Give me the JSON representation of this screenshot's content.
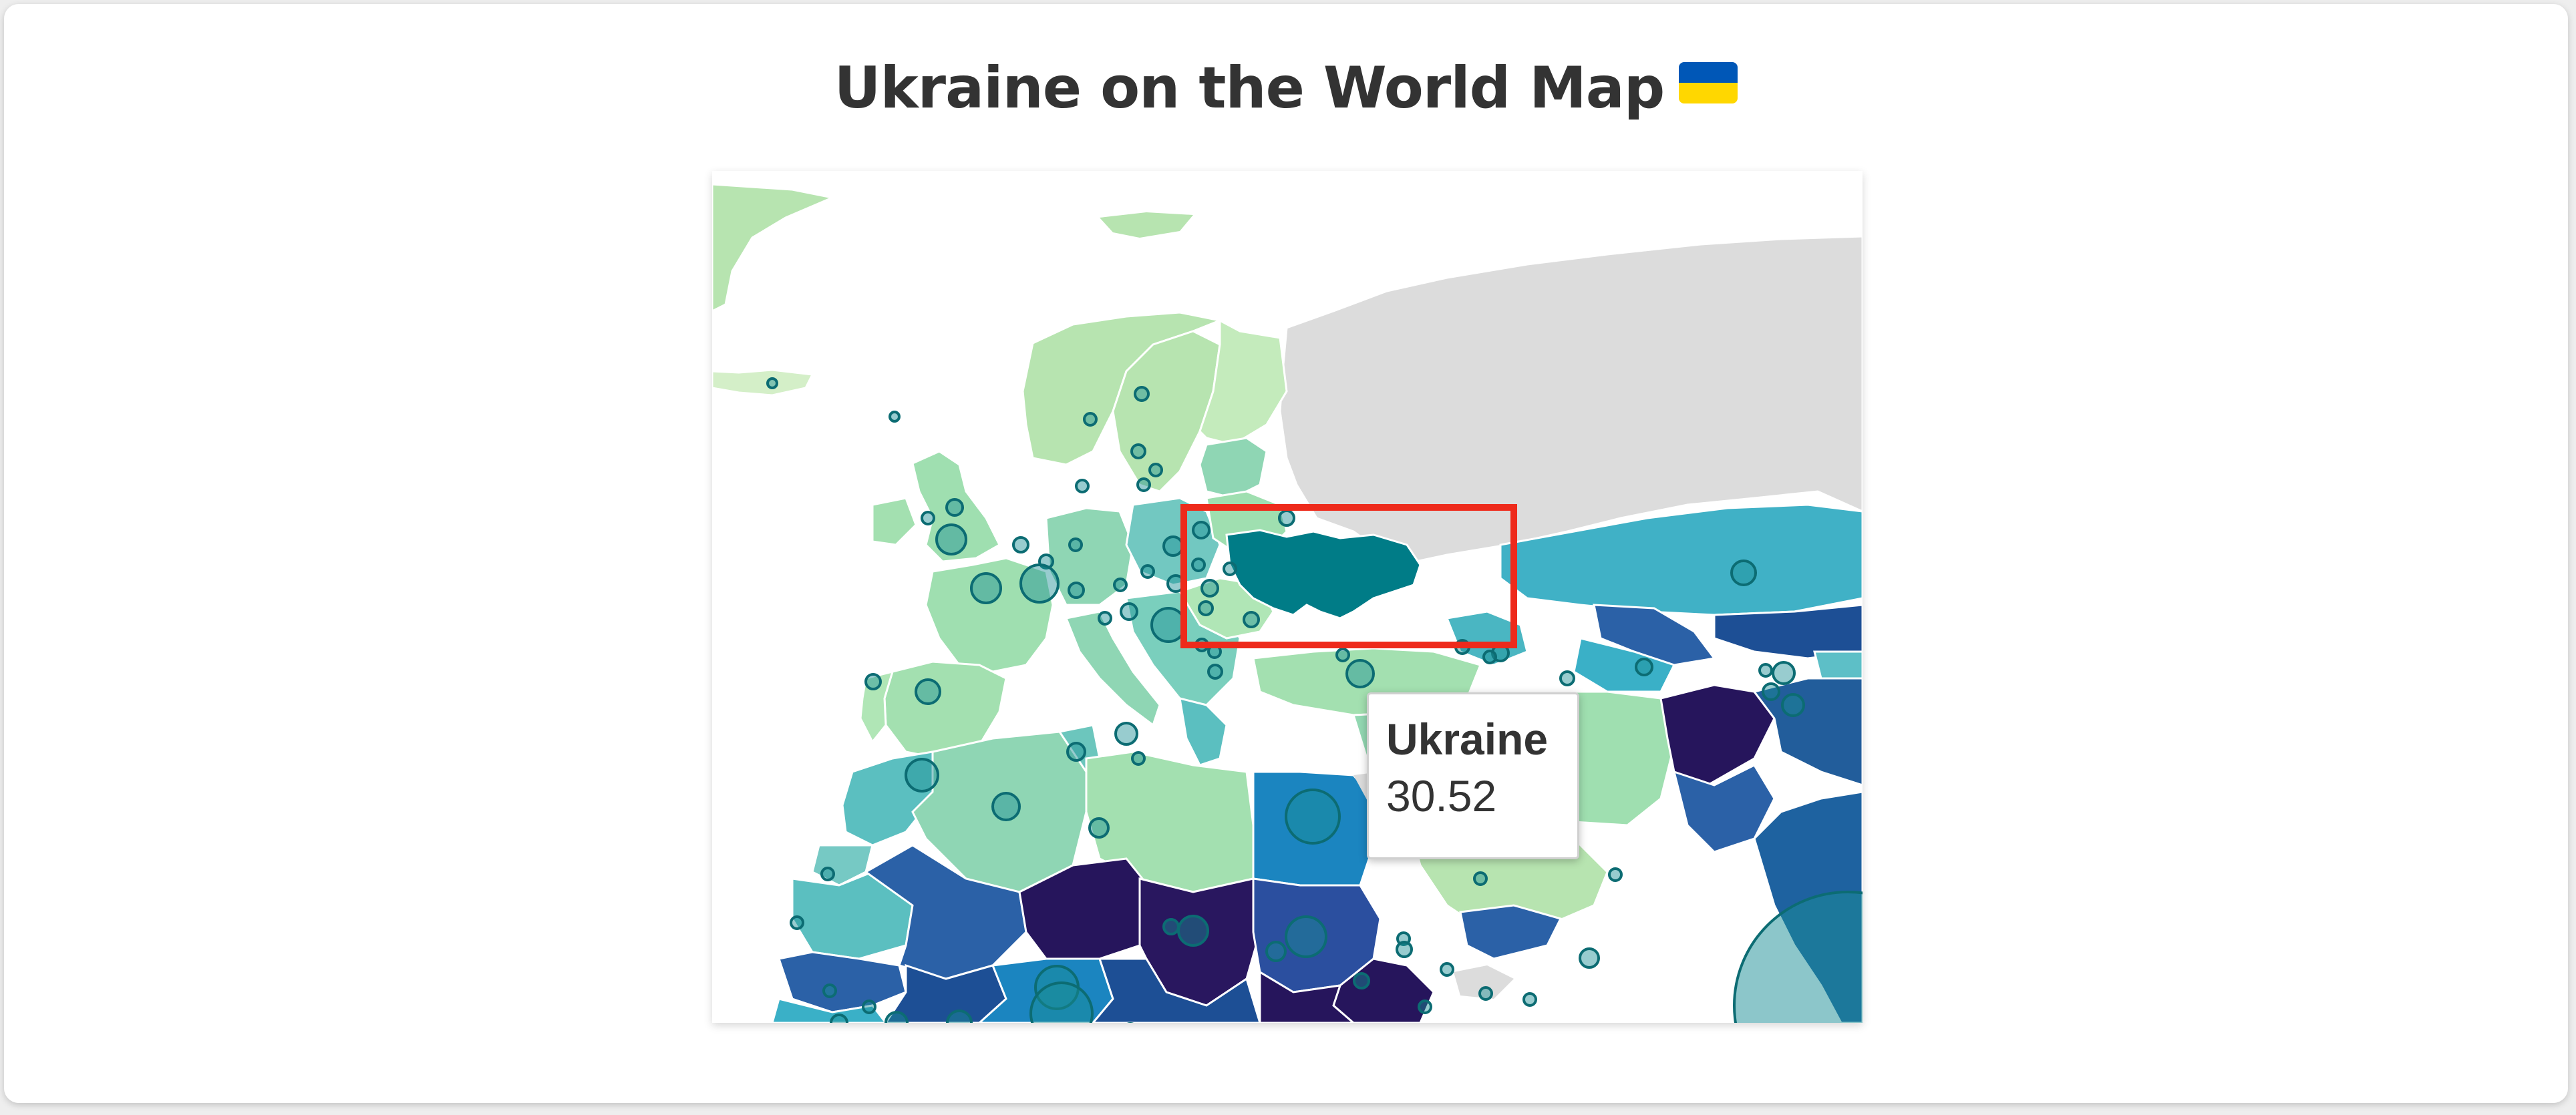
{
  "page": {
    "title": "Ukraine on the World Map",
    "title_emoji": "ukraine-flag-emoji"
  },
  "map": {
    "highlighted_country": "Ukraine",
    "colors": {
      "no_data": "#dcdcdc",
      "border": "#ffffff",
      "highlight_box": "#ee2a1b",
      "marker_fill": "#1a8e95",
      "marker_stroke": "#0c6c73",
      "flag_blue": "#0057b7",
      "flag_yellow": "#ffd700"
    }
  },
  "tooltip": {
    "country": "Ukraine",
    "value": "30.52"
  }
}
